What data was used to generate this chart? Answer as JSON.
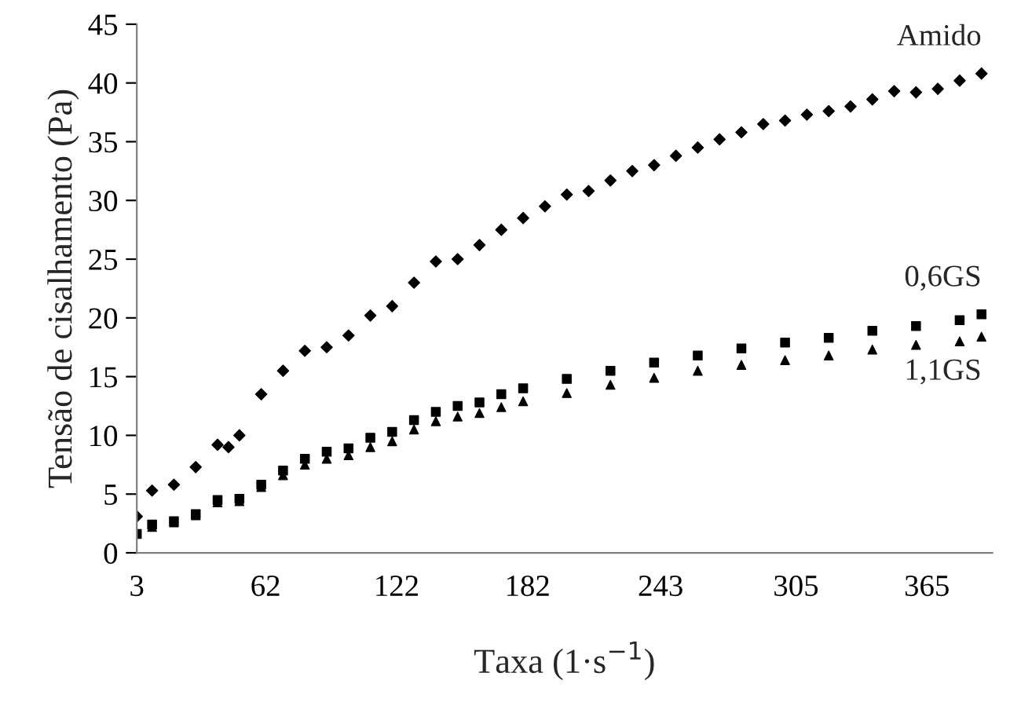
{
  "chart_data": {
    "type": "scatter",
    "xlabel": "Taxa (1·s$^{−1}$)",
    "ylabel": "Tensão de cisalhamento (Pa)",
    "xlim": [
      3,
      395
    ],
    "xticks": [
      3,
      62,
      122,
      182,
      243,
      305,
      365
    ],
    "ylim": [
      0,
      45
    ],
    "yticks": [
      0,
      5,
      10,
      15,
      20,
      25,
      30,
      35,
      40,
      45
    ],
    "grid": false,
    "legend": false,
    "series": [
      {
        "name": "Amido",
        "color": "#000000",
        "marker": "diamond",
        "x": [
          3,
          10,
          20,
          30,
          40,
          45,
          50,
          60,
          70,
          80,
          90,
          100,
          110,
          120,
          130,
          140,
          150,
          160,
          170,
          180,
          190,
          200,
          210,
          220,
          230,
          240,
          250,
          260,
          270,
          280,
          290,
          300,
          310,
          320,
          330,
          340,
          350,
          360,
          370,
          380,
          390
        ],
        "values": [
          3.1,
          5.3,
          5.8,
          7.3,
          9.2,
          9.0,
          10.0,
          13.5,
          15.5,
          17.2,
          17.5,
          18.5,
          20.2,
          21.0,
          23.0,
          24.8,
          25.0,
          26.2,
          27.5,
          28.5,
          29.5,
          30.5,
          30.8,
          31.7,
          32.5,
          33.0,
          33.8,
          34.5,
          35.2,
          35.8,
          36.5,
          36.8,
          37.3,
          37.6,
          38.0,
          38.6,
          39.3,
          39.2,
          39.5,
          40.2,
          40.8
        ]
      },
      {
        "name": "0,6GS",
        "color": "#000000",
        "marker": "square",
        "x": [
          3,
          10,
          20,
          30,
          40,
          50,
          60,
          70,
          80,
          90,
          100,
          110,
          120,
          130,
          140,
          150,
          160,
          170,
          180,
          200,
          220,
          240,
          260,
          280,
          300,
          320,
          340,
          360,
          380,
          390
        ],
        "values": [
          1.6,
          2.4,
          2.7,
          3.3,
          4.5,
          4.6,
          5.8,
          7.0,
          8.0,
          8.6,
          8.9,
          9.8,
          10.3,
          11.3,
          12.0,
          12.5,
          12.8,
          13.5,
          14.0,
          14.8,
          15.5,
          16.2,
          16.8,
          17.4,
          17.9,
          18.3,
          18.9,
          19.3,
          19.8,
          20.3
        ]
      },
      {
        "name": "1,1GS",
        "color": "#000000",
        "marker": "triangle",
        "x": [
          10,
          20,
          30,
          40,
          50,
          60,
          70,
          80,
          90,
          100,
          110,
          120,
          130,
          140,
          150,
          160,
          170,
          180,
          200,
          220,
          240,
          260,
          280,
          300,
          320,
          340,
          360,
          380,
          390
        ],
        "values": [
          2.2,
          2.6,
          3.2,
          4.3,
          4.4,
          5.6,
          6.6,
          7.5,
          8.0,
          8.3,
          9.0,
          9.5,
          10.5,
          11.2,
          11.6,
          11.9,
          12.4,
          12.9,
          13.6,
          14.3,
          14.9,
          15.5,
          16.0,
          16.4,
          16.8,
          17.3,
          17.7,
          18.0,
          18.4
        ]
      }
    ]
  }
}
